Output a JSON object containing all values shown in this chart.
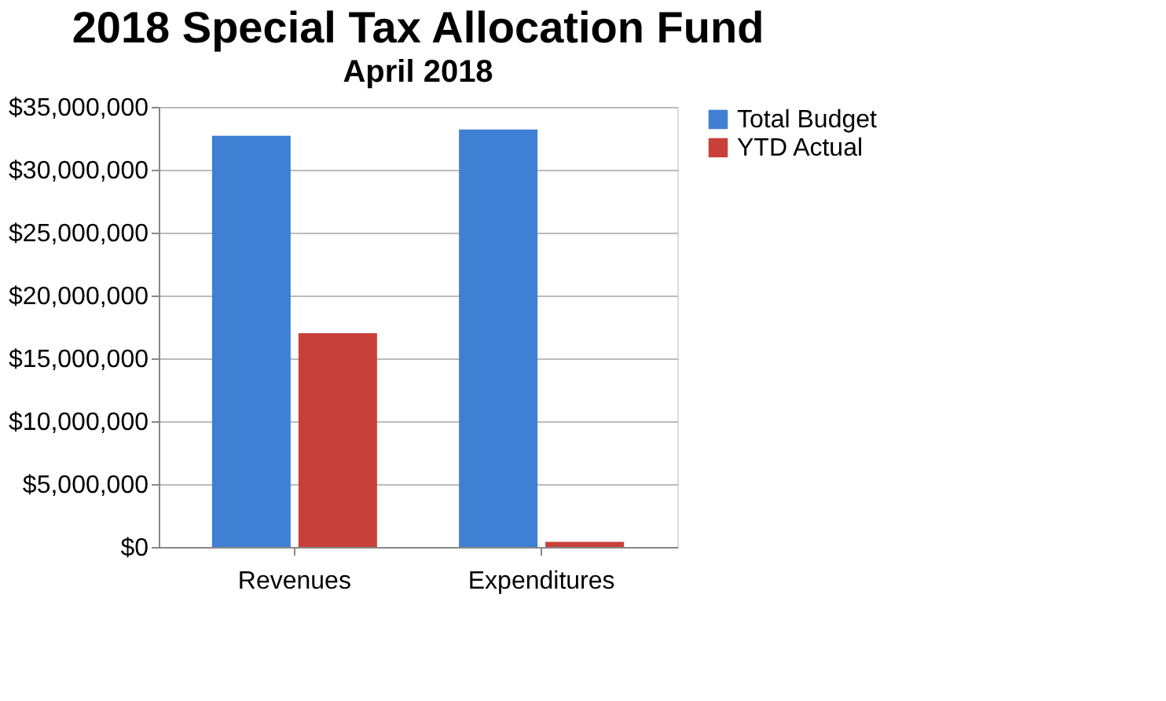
{
  "chart_data": {
    "type": "bar",
    "title": "2018 Special Tax Allocation Fund",
    "subtitle": "April 2018",
    "categories": [
      "Revenues",
      "Expenditures"
    ],
    "series": [
      {
        "name": "Total Budget",
        "color": "#3f7fd4",
        "values": [
          32700000,
          33200000
        ]
      },
      {
        "name": "YTD Actual",
        "color": "#c8403a",
        "values": [
          17000000,
          400000
        ]
      }
    ],
    "ylim": [
      0,
      35000000
    ],
    "yticks": [
      {
        "value": 0,
        "label": "$0"
      },
      {
        "value": 5000000,
        "label": "$5,000,000"
      },
      {
        "value": 10000000,
        "label": "$10,000,000"
      },
      {
        "value": 15000000,
        "label": "$15,000,000"
      },
      {
        "value": 20000000,
        "label": "$20,000,000"
      },
      {
        "value": 25000000,
        "label": "$25,000,000"
      },
      {
        "value": 30000000,
        "label": "$30,000,000"
      },
      {
        "value": 35000000,
        "label": "$35,000,000"
      }
    ],
    "grid": "y",
    "legend": "right"
  }
}
